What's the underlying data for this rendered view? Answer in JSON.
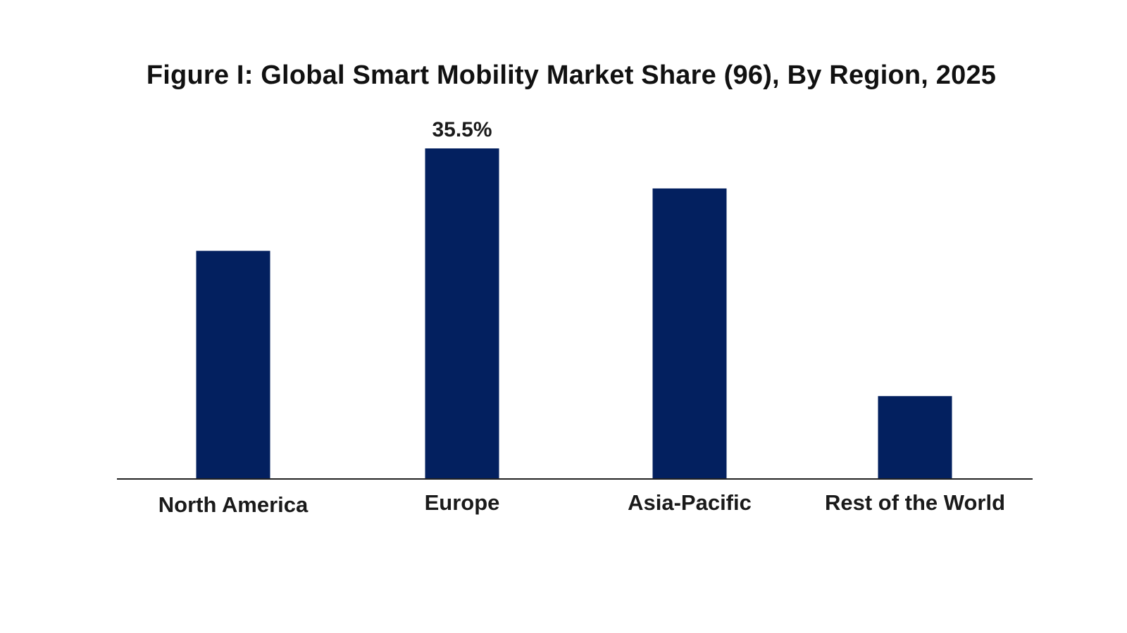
{
  "chart_data": {
    "type": "bar",
    "title": "Figure I: Global Smart Mobility Market Share (96), By Region, 2025",
    "categories": [
      "North America",
      "Europe",
      "Asia-Pacific",
      "Rest of the World"
    ],
    "values": [
      24.5,
      35.5,
      31.2,
      8.9
    ],
    "data_labels": [
      "",
      "35.5%",
      "",
      ""
    ],
    "xlabel": "",
    "ylabel": "",
    "ylim": [
      0,
      35.5
    ],
    "grid": false,
    "legend": "none",
    "colors": {
      "bar": "#03205f",
      "axis": "#222222"
    }
  }
}
